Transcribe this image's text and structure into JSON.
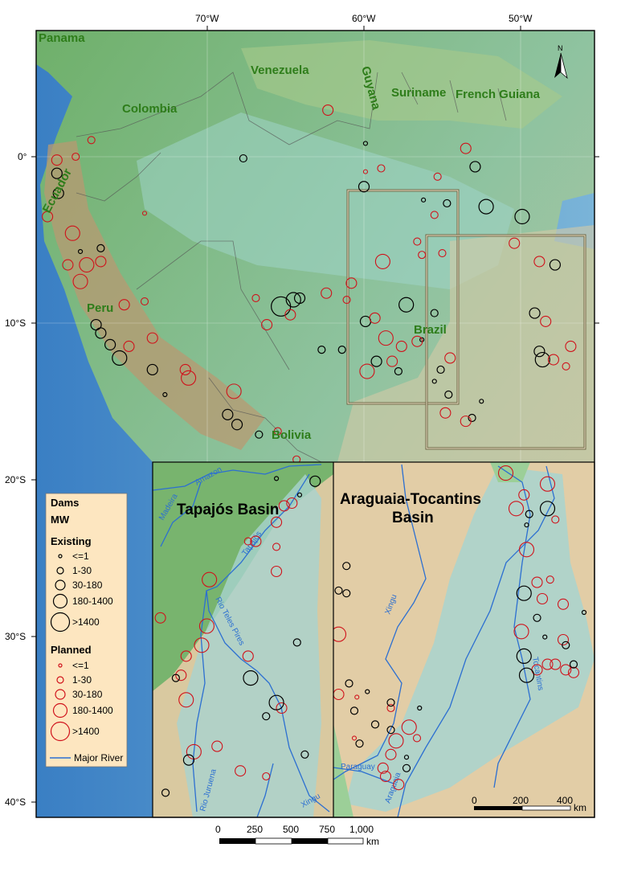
{
  "axes": {
    "lon_ticks": [
      "70°W",
      "60°W",
      "50°W"
    ],
    "lat_ticks": [
      "0°",
      "10°S",
      "20°S",
      "30°S",
      "40°S"
    ]
  },
  "north_arrow": "N",
  "country_labels": [
    "Panama",
    "Venezuela",
    "Guyana",
    "Suriname",
    "French Guiana",
    "Colombia",
    "Ecuador",
    "Peru",
    "Brazil",
    "Bolivia"
  ],
  "insets": {
    "tapajos": {
      "title": "Tapajós Basin",
      "rivers": [
        "Amazon",
        "Madeira",
        "Tapajós",
        "Rio Teles Pires",
        "Rio Juruena",
        "Xingu"
      ]
    },
    "araguaia": {
      "title_line1": "Araguaia-Tocantins",
      "title_line2": "Basin",
      "rivers": [
        "Xingu",
        "Paraguay",
        "Araguaia",
        "Tocantins"
      ]
    }
  },
  "legend": {
    "title": "Dams",
    "unit": "MW",
    "existing_label": "Existing",
    "planned_label": "Planned",
    "classes": [
      "<=1",
      "1-30",
      "30-180",
      "180-1400",
      ">1400"
    ],
    "river_label": "Major River",
    "colors": {
      "existing": "#000000",
      "planned": "#d0121b",
      "river": "#2c6fd1"
    }
  },
  "scale_main": {
    "labels": [
      "0",
      "250",
      "500",
      "750",
      "1,000"
    ],
    "unit": "km"
  },
  "scale_inset": {
    "labels": [
      "0",
      "200",
      "400"
    ],
    "unit": "km"
  },
  "dams_main": [
    {
      "s": "e",
      "c": 2,
      "lon": -67.7,
      "lat": -0.1
    },
    {
      "s": "e",
      "c": 1,
      "lon": -59.9,
      "lat": 0.8
    },
    {
      "s": "e",
      "c": 3,
      "lon": -60.0,
      "lat": -1.8
    },
    {
      "s": "e",
      "c": 1,
      "lon": -56.2,
      "lat": -2.6
    },
    {
      "s": "e",
      "c": 2,
      "lon": -54.7,
      "lat": -2.8
    },
    {
      "s": "e",
      "c": 3,
      "lon": -52.9,
      "lat": -0.6
    },
    {
      "s": "e",
      "c": 4,
      "lon": -52.2,
      "lat": -3.0
    },
    {
      "s": "e",
      "c": 4,
      "lon": -49.9,
      "lat": -3.6
    },
    {
      "s": "e",
      "c": 5,
      "lon": -65.3,
      "lat": -9.0
    },
    {
      "s": "e",
      "c": 4,
      "lon": -64.5,
      "lat": -8.6
    },
    {
      "s": "e",
      "c": 3,
      "lon": -64.1,
      "lat": -8.5
    },
    {
      "s": "e",
      "c": 4,
      "lon": -57.3,
      "lat": -8.9
    },
    {
      "s": "e",
      "c": 2,
      "lon": -55.5,
      "lat": -9.4
    },
    {
      "s": "e",
      "c": 3,
      "lon": -59.9,
      "lat": -9.9
    },
    {
      "s": "e",
      "c": 1,
      "lon": -56.3,
      "lat": -11.0
    },
    {
      "s": "e",
      "c": 2,
      "lon": -61.4,
      "lat": -11.6
    },
    {
      "s": "e",
      "c": 2,
      "lon": -62.7,
      "lat": -11.6
    },
    {
      "s": "e",
      "c": 3,
      "lon": -59.2,
      "lat": -12.3
    },
    {
      "s": "e",
      "c": 2,
      "lon": -57.8,
      "lat": -12.9
    },
    {
      "s": "e",
      "c": 2,
      "lon": -55.1,
      "lat": -12.8
    },
    {
      "s": "e",
      "c": 1,
      "lon": -55.5,
      "lat": -13.5
    },
    {
      "s": "e",
      "c": 2,
      "lon": -54.6,
      "lat": -14.3
    },
    {
      "s": "e",
      "c": 2,
      "lon": -53.1,
      "lat": -15.7
    },
    {
      "s": "e",
      "c": 1,
      "lon": -52.5,
      "lat": -14.7
    },
    {
      "s": "e",
      "c": 3,
      "lon": -49.1,
      "lat": -9.4
    },
    {
      "s": "e",
      "c": 3,
      "lon": -48.8,
      "lat": -11.7
    },
    {
      "s": "e",
      "c": 3,
      "lon": -47.8,
      "lat": -6.5
    },
    {
      "s": "e",
      "c": 4,
      "lon": -48.6,
      "lat": -12.2
    },
    {
      "s": "e",
      "c": 2,
      "lon": -76.8,
      "lat": -5.5
    },
    {
      "s": "e",
      "c": 1,
      "lon": -78.1,
      "lat": -5.7
    },
    {
      "s": "e",
      "c": 4,
      "lon": -75.6,
      "lat": -12.1
    },
    {
      "s": "e",
      "c": 3,
      "lon": -76.8,
      "lat": -10.6
    },
    {
      "s": "e",
      "c": 3,
      "lon": -76.2,
      "lat": -11.3
    },
    {
      "s": "e",
      "c": 3,
      "lon": -77.1,
      "lat": -10.1
    },
    {
      "s": "e",
      "c": 3,
      "lon": -73.5,
      "lat": -12.8
    },
    {
      "s": "e",
      "c": 1,
      "lon": -72.7,
      "lat": -14.3
    },
    {
      "s": "e",
      "c": 3,
      "lon": -68.7,
      "lat": -15.5
    },
    {
      "s": "e",
      "c": 3,
      "lon": -68.1,
      "lat": -16.1
    },
    {
      "s": "e",
      "c": 2,
      "lon": -66.7,
      "lat": -16.7
    },
    {
      "s": "e",
      "c": 3,
      "lon": -79.6,
      "lat": -1.0
    },
    {
      "s": "e",
      "c": 3,
      "lon": -79.5,
      "lat": -2.2
    },
    {
      "s": "p",
      "c": 3,
      "lon": -62.3,
      "lat": 2.8
    },
    {
      "s": "p",
      "c": 1,
      "lon": -59.9,
      "lat": -0.9
    },
    {
      "s": "p",
      "c": 2,
      "lon": -58.9,
      "lat": -0.7
    },
    {
      "s": "p",
      "c": 3,
      "lon": -53.5,
      "lat": 0.5
    },
    {
      "s": "p",
      "c": 2,
      "lon": -55.3,
      "lat": -1.2
    },
    {
      "s": "p",
      "c": 2,
      "lon": -55.5,
      "lat": -3.5
    },
    {
      "s": "p",
      "c": 2,
      "lon": -56.6,
      "lat": -5.1
    },
    {
      "s": "p",
      "c": 4,
      "lon": -58.8,
      "lat": -6.3
    },
    {
      "s": "p",
      "c": 3,
      "lon": -60.8,
      "lat": -7.6
    },
    {
      "s": "p",
      "c": 3,
      "lon": -62.4,
      "lat": -8.2
    },
    {
      "s": "p",
      "c": 3,
      "lon": -59.3,
      "lat": -9.7
    },
    {
      "s": "p",
      "c": 4,
      "lon": -58.6,
      "lat": -10.9
    },
    {
      "s": "p",
      "c": 4,
      "lon": -59.8,
      "lat": -12.9
    },
    {
      "s": "p",
      "c": 3,
      "lon": -58.2,
      "lat": -12.3
    },
    {
      "s": "p",
      "c": 3,
      "lon": -57.6,
      "lat": -11.4
    },
    {
      "s": "p",
      "c": 3,
      "lon": -56.6,
      "lat": -11.1
    },
    {
      "s": "p",
      "c": 3,
      "lon": -54.5,
      "lat": -12.1
    },
    {
      "s": "p",
      "c": 3,
      "lon": -54.8,
      "lat": -15.4
    },
    {
      "s": "p",
      "c": 3,
      "lon": -53.5,
      "lat": -15.9
    },
    {
      "s": "p",
      "c": 2,
      "lon": -56.3,
      "lat": -5.9
    },
    {
      "s": "p",
      "c": 2,
      "lon": -55.0,
      "lat": -5.8
    },
    {
      "s": "p",
      "c": 3,
      "lon": -50.4,
      "lat": -5.2
    },
    {
      "s": "p",
      "c": 3,
      "lon": -48.8,
      "lat": -6.3
    },
    {
      "s": "p",
      "c": 3,
      "lon": -48.4,
      "lat": -9.9
    },
    {
      "s": "p",
      "c": 3,
      "lon": -47.9,
      "lat": -12.2
    },
    {
      "s": "p",
      "c": 3,
      "lon": -46.8,
      "lat": -11.4
    },
    {
      "s": "p",
      "c": 2,
      "lon": -47.1,
      "lat": -12.6
    },
    {
      "s": "p",
      "c": 2,
      "lon": -66.9,
      "lat": -8.5
    },
    {
      "s": "p",
      "c": 3,
      "lon": -66.2,
      "lat": -10.1
    },
    {
      "s": "p",
      "c": 3,
      "lon": -64.7,
      "lat": -9.5
    },
    {
      "s": "p",
      "c": 2,
      "lon": -61.1,
      "lat": -8.6
    },
    {
      "s": "p",
      "c": 2,
      "lon": -74.0,
      "lat": -8.7
    },
    {
      "s": "p",
      "c": 3,
      "lon": -73.5,
      "lat": -10.9
    },
    {
      "s": "p",
      "c": 3,
      "lon": -75.0,
      "lat": -11.4
    },
    {
      "s": "p",
      "c": 3,
      "lon": -71.4,
      "lat": -12.8
    },
    {
      "s": "p",
      "c": 4,
      "lon": -71.2,
      "lat": -13.3
    },
    {
      "s": "p",
      "c": 4,
      "lon": -68.3,
      "lat": -14.1
    },
    {
      "s": "p",
      "c": 2,
      "lon": -65.5,
      "lat": -16.5
    },
    {
      "s": "p",
      "c": 2,
      "lon": -64.3,
      "lat": -18.2
    },
    {
      "s": "p",
      "c": 4,
      "lon": -77.7,
      "lat": -6.5
    },
    {
      "s": "p",
      "c": 4,
      "lon": -78.6,
      "lat": -4.6
    },
    {
      "s": "p",
      "c": 3,
      "lon": -80.2,
      "lat": -3.6
    },
    {
      "s": "p",
      "c": 3,
      "lon": -78.9,
      "lat": -6.5
    },
    {
      "s": "p",
      "c": 3,
      "lon": -76.8,
      "lat": -6.3
    },
    {
      "s": "p",
      "c": 4,
      "lon": -78.1,
      "lat": -7.5
    },
    {
      "s": "p",
      "c": 1,
      "lon": -74.0,
      "lat": -3.4
    },
    {
      "s": "p",
      "c": 3,
      "lon": -75.3,
      "lat": -8.9
    },
    {
      "s": "p",
      "c": 3,
      "lon": -79.6,
      "lat": -0.2
    },
    {
      "s": "p",
      "c": 2,
      "lon": -78.4,
      "lat": 0.0
    },
    {
      "s": "p",
      "c": 2,
      "lon": -77.4,
      "lat": 1.0
    }
  ],
  "dams_tapajos": [
    {
      "s": "p",
      "c": 3,
      "lon": -55.9,
      "lat": -3.6
    },
    {
      "s": "p",
      "c": 3,
      "lon": -55.6,
      "lat": -3.5
    },
    {
      "s": "p",
      "c": 3,
      "lon": -56.2,
      "lat": -4.2
    },
    {
      "s": "p",
      "c": 3,
      "lon": -57.0,
      "lat": -4.9
    },
    {
      "s": "p",
      "c": 2,
      "lon": -57.3,
      "lat": -4.9
    },
    {
      "s": "p",
      "c": 2,
      "lon": -56.2,
      "lat": -5.1
    },
    {
      "s": "p",
      "c": 3,
      "lon": -56.2,
      "lat": -6.0
    },
    {
      "s": "p",
      "c": 4,
      "lon": -58.8,
      "lat": -6.3
    },
    {
      "s": "p",
      "c": 4,
      "lon": -58.9,
      "lat": -8.0
    },
    {
      "s": "p",
      "c": 4,
      "lon": -59.1,
      "lat": -8.7
    },
    {
      "s": "p",
      "c": 3,
      "lon": -59.7,
      "lat": -9.1
    },
    {
      "s": "p",
      "c": 3,
      "lon": -57.3,
      "lat": -9.1
    },
    {
      "s": "p",
      "c": 4,
      "lon": -59.7,
      "lat": -10.7
    },
    {
      "s": "p",
      "c": 3,
      "lon": -59.9,
      "lat": -9.8
    },
    {
      "s": "p",
      "c": 3,
      "lon": -56.0,
      "lat": -11.0
    },
    {
      "s": "p",
      "c": 4,
      "lon": -59.4,
      "lat": -12.6
    },
    {
      "s": "p",
      "c": 3,
      "lon": -57.6,
      "lat": -13.3
    },
    {
      "s": "p",
      "c": 3,
      "lon": -58.5,
      "lat": -12.4
    },
    {
      "s": "p",
      "c": 2,
      "lon": -56.6,
      "lat": -13.5
    },
    {
      "s": "p",
      "c": 3,
      "lon": -60.7,
      "lat": -7.7
    },
    {
      "s": "e",
      "c": 1,
      "lon": -56.2,
      "lat": -2.6
    },
    {
      "s": "e",
      "c": 3,
      "lon": -54.7,
      "lat": -2.7
    },
    {
      "s": "e",
      "c": 1,
      "lon": -55.3,
      "lat": -3.2
    },
    {
      "s": "e",
      "c": 4,
      "lon": -57.2,
      "lat": -9.9
    },
    {
      "s": "e",
      "c": 4,
      "lon": -56.2,
      "lat": -10.8
    },
    {
      "s": "e",
      "c": 2,
      "lon": -55.4,
      "lat": -8.6
    },
    {
      "s": "e",
      "c": 2,
      "lon": -60.1,
      "lat": -9.9
    },
    {
      "s": "e",
      "c": 3,
      "lon": -59.6,
      "lat": -12.9
    },
    {
      "s": "e",
      "c": 2,
      "lon": -55.1,
      "lat": -12.7
    },
    {
      "s": "e",
      "c": 2,
      "lon": -60.5,
      "lat": -14.1
    },
    {
      "s": "e",
      "c": 2,
      "lon": -56.6,
      "lat": -11.3
    }
  ],
  "dams_araguaia": [
    {
      "s": "p",
      "c": 4,
      "lon": -49.4,
      "lat": -5.2
    },
    {
      "s": "p",
      "c": 4,
      "lon": -47.8,
      "lat": -5.6
    },
    {
      "s": "p",
      "c": 3,
      "lon": -48.7,
      "lat": -6.0
    },
    {
      "s": "p",
      "c": 4,
      "lon": -49.0,
      "lat": -6.5
    },
    {
      "s": "p",
      "c": 2,
      "lon": -47.5,
      "lat": -6.9
    },
    {
      "s": "p",
      "c": 4,
      "lon": -48.6,
      "lat": -8.0
    },
    {
      "s": "p",
      "c": 3,
      "lon": -48.2,
      "lat": -9.2
    },
    {
      "s": "p",
      "c": 2,
      "lon": -47.7,
      "lat": -9.1
    },
    {
      "s": "p",
      "c": 3,
      "lon": -48.0,
      "lat": -9.8
    },
    {
      "s": "p",
      "c": 3,
      "lon": -47.2,
      "lat": -10.0
    },
    {
      "s": "p",
      "c": 4,
      "lon": -48.8,
      "lat": -11.0
    },
    {
      "s": "p",
      "c": 3,
      "lon": -48.2,
      "lat": -12.4
    },
    {
      "s": "p",
      "c": 3,
      "lon": -47.5,
      "lat": -12.2
    },
    {
      "s": "p",
      "c": 3,
      "lon": -47.8,
      "lat": -12.2
    },
    {
      "s": "p",
      "c": 3,
      "lon": -47.1,
      "lat": -12.4
    },
    {
      "s": "p",
      "c": 3,
      "lon": -46.8,
      "lat": -12.5
    },
    {
      "s": "p",
      "c": 3,
      "lon": -47.2,
      "lat": -11.3
    },
    {
      "s": "p",
      "c": 4,
      "lon": -55.8,
      "lat": -11.1
    },
    {
      "s": "p",
      "c": 3,
      "lon": -55.8,
      "lat": -13.3
    },
    {
      "s": "p",
      "c": 1,
      "lon": -55.1,
      "lat": -13.4
    },
    {
      "s": "p",
      "c": 2,
      "lon": -53.8,
      "lat": -13.8
    },
    {
      "s": "p",
      "c": 4,
      "lon": -53.1,
      "lat": -14.5
    },
    {
      "s": "p",
      "c": 4,
      "lon": -53.6,
      "lat": -15.0
    },
    {
      "s": "p",
      "c": 2,
      "lon": -52.8,
      "lat": -14.9
    },
    {
      "s": "p",
      "c": 3,
      "lon": -53.8,
      "lat": -15.5
    },
    {
      "s": "p",
      "c": 3,
      "lon": -54.1,
      "lat": -16.0
    },
    {
      "s": "p",
      "c": 3,
      "lon": -54.0,
      "lat": -16.3
    },
    {
      "s": "p",
      "c": 3,
      "lon": -53.5,
      "lat": -16.6
    },
    {
      "s": "p",
      "c": 1,
      "lon": -55.2,
      "lat": -14.9
    },
    {
      "s": "e",
      "c": 4,
      "lon": -47.8,
      "lat": -6.5
    },
    {
      "s": "e",
      "c": 2,
      "lon": -48.5,
      "lat": -6.7
    },
    {
      "s": "e",
      "c": 1,
      "lon": -48.6,
      "lat": -7.1
    },
    {
      "s": "e",
      "c": 4,
      "lon": -48.7,
      "lat": -9.6
    },
    {
      "s": "e",
      "c": 2,
      "lon": -48.2,
      "lat": -10.5
    },
    {
      "s": "e",
      "c": 1,
      "lon": -47.9,
      "lat": -11.2
    },
    {
      "s": "e",
      "c": 4,
      "lon": -48.7,
      "lat": -11.9
    },
    {
      "s": "e",
      "c": 4,
      "lon": -48.6,
      "lat": -12.6
    },
    {
      "s": "e",
      "c": 2,
      "lon": -47.1,
      "lat": -11.5
    },
    {
      "s": "e",
      "c": 2,
      "lon": -46.8,
      "lat": -12.2
    },
    {
      "s": "e",
      "c": 1,
      "lon": -46.4,
      "lat": -10.3
    },
    {
      "s": "e",
      "c": 2,
      "lon": -55.5,
      "lat": -8.6
    },
    {
      "s": "e",
      "c": 2,
      "lon": -55.8,
      "lat": -9.5
    },
    {
      "s": "e",
      "c": 2,
      "lon": -55.5,
      "lat": -9.6
    },
    {
      "s": "e",
      "c": 2,
      "lon": -55.4,
      "lat": -12.9
    },
    {
      "s": "e",
      "c": 1,
      "lon": -54.7,
      "lat": -13.2
    },
    {
      "s": "e",
      "c": 2,
      "lon": -55.2,
      "lat": -13.9
    },
    {
      "s": "e",
      "c": 2,
      "lon": -53.8,
      "lat": -13.6
    },
    {
      "s": "e",
      "c": 1,
      "lon": -52.7,
      "lat": -13.8
    },
    {
      "s": "e",
      "c": 2,
      "lon": -54.4,
      "lat": -14.4
    },
    {
      "s": "e",
      "c": 2,
      "lon": -53.8,
      "lat": -14.6
    },
    {
      "s": "e",
      "c": 2,
      "lon": -55.0,
      "lat": -15.1
    },
    {
      "s": "e",
      "c": 2,
      "lon": -53.2,
      "lat": -16.0
    },
    {
      "s": "e",
      "c": 1,
      "lon": -53.2,
      "lat": -15.6
    }
  ]
}
